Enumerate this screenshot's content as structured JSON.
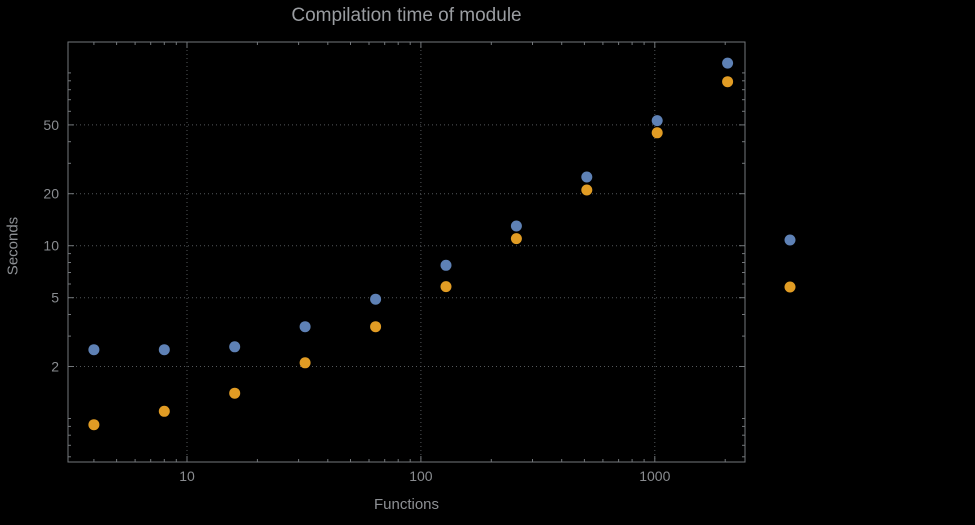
{
  "colors": {
    "background": "#000000",
    "series_blue": "#5E81B5",
    "series_orange": "#E19C24",
    "frame": "#73777b",
    "grid": "#53575a",
    "title_text": "#9a9da1",
    "axis_label_text": "#8d9094",
    "tick_text": "#898c90"
  },
  "chart_data": {
    "type": "scatter",
    "title": "Compilation time of module",
    "xlabel": "Functions",
    "ylabel": "Seconds",
    "x_scale": "log",
    "y_scale": "log",
    "grid": "dotted",
    "xlim": [
      3.1,
      2430
    ],
    "ylim": [
      0.56,
      151
    ],
    "x_ticks": [
      {
        "value": 10,
        "label": "10"
      },
      {
        "value": 100,
        "label": "100"
      },
      {
        "value": 1000,
        "label": "1000"
      }
    ],
    "y_ticks": [
      {
        "value": 2,
        "label": "2"
      },
      {
        "value": 5,
        "label": "5"
      },
      {
        "value": 10,
        "label": "10"
      },
      {
        "value": 20,
        "label": "20"
      },
      {
        "value": 50,
        "label": "50"
      }
    ],
    "x": [
      4,
      8,
      16,
      32,
      64,
      128,
      256,
      512,
      1024,
      2048
    ],
    "series": [
      {
        "name": "series-1-blue",
        "color": "#5E81B5",
        "values": [
          2.5,
          2.5,
          2.6,
          3.4,
          4.9,
          7.7,
          13,
          25,
          53,
          114
        ]
      },
      {
        "name": "series-2-orange",
        "color": "#E19C24",
        "values": [
          0.92,
          1.1,
          1.4,
          2.1,
          3.4,
          5.8,
          11,
          21,
          45,
          89
        ]
      }
    ],
    "legend": {
      "position": "right-of-plot",
      "labels_visible": false,
      "markers": [
        {
          "color": "#5E81B5"
        },
        {
          "color": "#E19C24"
        }
      ]
    }
  }
}
